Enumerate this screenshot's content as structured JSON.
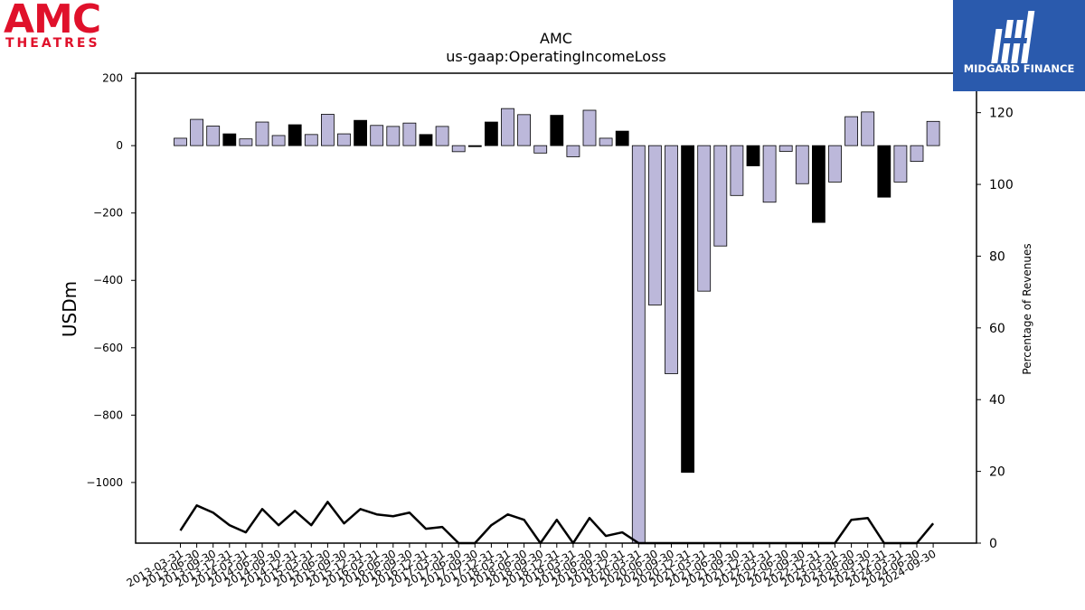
{
  "logos": {
    "left_brand": "AMC",
    "left_brand_sub": "THEATRES",
    "right_brand": "MIDGARD FINANCE",
    "brand_red": "#e0112b",
    "brand_blue": "#2a5aad"
  },
  "chart_data": {
    "type": "bar",
    "title": "AMC",
    "subtitle": "us-gaap:OperatingIncomeLoss",
    "ylabel": "USDm",
    "y2label": "Percentage of Revenues",
    "ylim": [
      -1180,
      215
    ],
    "y2lim": [
      0,
      131
    ],
    "yticks": [
      200,
      0,
      -200,
      -400,
      -600,
      -800,
      -1000
    ],
    "y2ticks": [
      0,
      20,
      40,
      60,
      80,
      100,
      120
    ],
    "grid": false,
    "bar_colors": {
      "default": "#bcb8da",
      "highlight": "#000000"
    },
    "categories": [
      "2013-03-31",
      "2013-06-30",
      "2013-09-30",
      "2013-12-31",
      "2014-03-31",
      "2014-06-30",
      "2014-09-30",
      "2014-12-31",
      "2015-03-31",
      "2015-06-30",
      "2015-09-30",
      "2015-12-31",
      "2016-03-31",
      "2016-06-30",
      "2016-09-30",
      "2016-12-31",
      "2017-03-31",
      "2017-06-30",
      "2017-09-30",
      "2017-12-31",
      "2018-03-31",
      "2018-06-30",
      "2018-09-30",
      "2018-12-31",
      "2019-03-31",
      "2019-06-30",
      "2019-09-30",
      "2019-12-31",
      "2020-03-31",
      "2020-06-30",
      "2020-09-30",
      "2020-12-31",
      "2021-03-31",
      "2021-06-30",
      "2021-09-30",
      "2021-12-31",
      "2022-03-31",
      "2022-06-30",
      "2022-09-30",
      "2022-12-31",
      "2023-03-31",
      "2023-06-30",
      "2023-09-30",
      "2023-12-31",
      "2024-03-31",
      "2024-06-30",
      "2024-09-30"
    ],
    "series": [
      {
        "values": [
          22,
          78,
          58,
          35,
          20,
          70,
          30,
          62,
          33,
          93,
          35,
          75,
          60,
          57,
          67,
          33,
          57,
          -18,
          -3,
          70,
          110,
          92,
          -22,
          90,
          -33,
          105,
          22,
          43,
          -1180,
          -473,
          -677,
          -970,
          -432,
          -298,
          -148,
          -60,
          -168,
          -17,
          -113,
          -228,
          -108,
          86,
          100,
          -153,
          -108,
          -47,
          72
        ],
        "highlight": [
          false,
          false,
          false,
          true,
          false,
          false,
          false,
          true,
          false,
          false,
          false,
          true,
          false,
          false,
          false,
          true,
          false,
          false,
          true,
          true,
          false,
          false,
          false,
          true,
          false,
          false,
          false,
          true,
          false,
          false,
          false,
          true,
          false,
          false,
          false,
          true,
          false,
          false,
          false,
          true,
          false,
          false,
          false,
          true,
          false,
          false,
          false
        ]
      },
      {
        "values": [
          3.5,
          10.5,
          8.5,
          5,
          3,
          9.5,
          5,
          9,
          5,
          11.5,
          5.5,
          9.5,
          8,
          7.5,
          8.5,
          4,
          4.5,
          -1,
          -1,
          5,
          8,
          6.5,
          -1,
          6.5,
          -1,
          7,
          2,
          3,
          -1,
          -1,
          -1,
          -1,
          -1,
          -1,
          -1,
          -1,
          -1,
          -1,
          -1,
          -1,
          -1,
          6.5,
          7,
          -1,
          -1,
          -1,
          5.5
        ],
        "axis": "secondary",
        "type": "line"
      }
    ]
  }
}
